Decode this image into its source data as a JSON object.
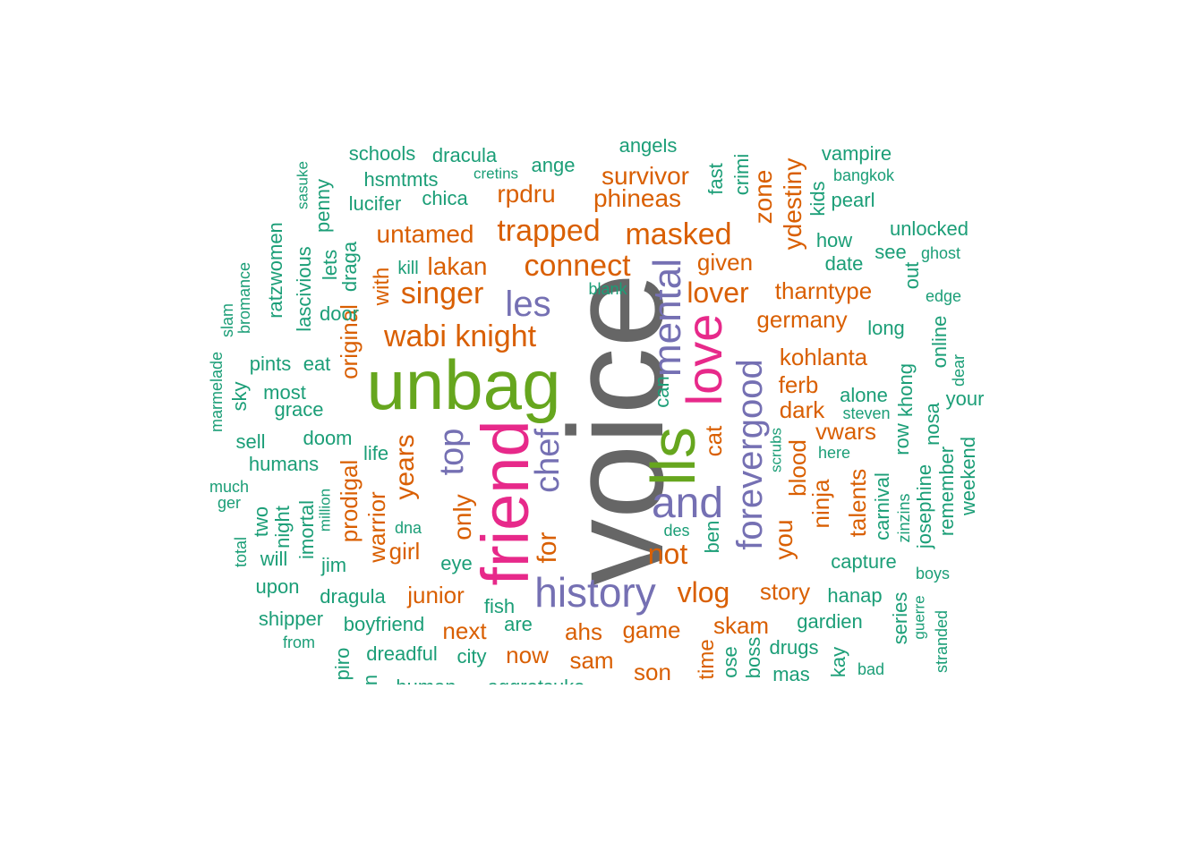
{
  "palette": {
    "teal": "#1b9e77",
    "orange": "#d95f02",
    "purple": "#7570b3",
    "magenta": "#e7298a",
    "green": "#66a61e",
    "gray": "#666666"
  },
  "words": [
    {
      "text": "voice",
      "color": "gray"
    },
    {
      "text": "unbag",
      "color": "green"
    },
    {
      "text": "friend",
      "color": "magenta"
    },
    {
      "text": "history",
      "color": "purple"
    },
    {
      "text": "lls",
      "color": "green"
    },
    {
      "text": "love",
      "color": "magenta"
    },
    {
      "text": "mental",
      "color": "purple"
    },
    {
      "text": "and",
      "color": "purple"
    },
    {
      "text": "forevergood",
      "color": "purple"
    },
    {
      "text": "les",
      "color": "purple"
    },
    {
      "text": "chef",
      "color": "purple"
    },
    {
      "text": "top",
      "color": "purple"
    },
    {
      "text": "connect",
      "color": "orange"
    },
    {
      "text": "trapped",
      "color": "orange"
    },
    {
      "text": "masked",
      "color": "orange"
    },
    {
      "text": "singer",
      "color": "orange"
    },
    {
      "text": "wabi knight",
      "color": "orange"
    },
    {
      "text": "lover",
      "color": "orange"
    },
    {
      "text": "years",
      "color": "orange"
    },
    {
      "text": "only",
      "color": "orange"
    },
    {
      "text": "for",
      "color": "orange"
    },
    {
      "text": "not",
      "color": "orange"
    },
    {
      "text": "vlog",
      "color": "orange"
    },
    {
      "text": "you",
      "color": "orange"
    },
    {
      "text": "untamed",
      "color": "orange"
    },
    {
      "text": "lakan",
      "color": "orange"
    },
    {
      "text": "rpdru",
      "color": "orange"
    },
    {
      "text": "survivor",
      "color": "orange"
    },
    {
      "text": "phineas",
      "color": "orange"
    },
    {
      "text": "zone",
      "color": "orange"
    },
    {
      "text": "ydestiny",
      "color": "orange"
    },
    {
      "text": "given",
      "color": "orange"
    },
    {
      "text": "tharntype",
      "color": "orange"
    },
    {
      "text": "germany",
      "color": "orange"
    },
    {
      "text": "kohlanta",
      "color": "orange"
    },
    {
      "text": "ferb",
      "color": "orange"
    },
    {
      "text": "dark",
      "color": "orange"
    },
    {
      "text": "vwars",
      "color": "orange"
    },
    {
      "text": "blood",
      "color": "orange"
    },
    {
      "text": "ninja",
      "color": "orange"
    },
    {
      "text": "talents",
      "color": "orange"
    },
    {
      "text": "cat",
      "color": "orange"
    },
    {
      "text": "original",
      "color": "orange"
    },
    {
      "text": "prodigal",
      "color": "orange"
    },
    {
      "text": "warrior",
      "color": "orange"
    },
    {
      "text": "with",
      "color": "orange"
    },
    {
      "text": "girl",
      "color": "orange"
    },
    {
      "text": "junior",
      "color": "orange"
    },
    {
      "text": "next",
      "color": "orange"
    },
    {
      "text": "now",
      "color": "orange"
    },
    {
      "text": "ahs",
      "color": "orange"
    },
    {
      "text": "game",
      "color": "orange"
    },
    {
      "text": "sam",
      "color": "orange"
    },
    {
      "text": "son",
      "color": "orange"
    },
    {
      "text": "skam",
      "color": "orange"
    },
    {
      "text": "story",
      "color": "orange"
    },
    {
      "text": "time",
      "color": "orange"
    },
    {
      "text": "schools",
      "color": "teal"
    },
    {
      "text": "dracula",
      "color": "teal"
    },
    {
      "text": "hsmtmts",
      "color": "teal"
    },
    {
      "text": "cretins",
      "color": "teal"
    },
    {
      "text": "ange",
      "color": "teal"
    },
    {
      "text": "angels",
      "color": "teal"
    },
    {
      "text": "lucifer",
      "color": "teal"
    },
    {
      "text": "chica",
      "color": "teal"
    },
    {
      "text": "fast",
      "color": "teal"
    },
    {
      "text": "crimi",
      "color": "teal"
    },
    {
      "text": "vampire",
      "color": "teal"
    },
    {
      "text": "bangkok",
      "color": "teal"
    },
    {
      "text": "kids",
      "color": "teal"
    },
    {
      "text": "pearl",
      "color": "teal"
    },
    {
      "text": "how",
      "color": "teal"
    },
    {
      "text": "date",
      "color": "teal"
    },
    {
      "text": "unlocked",
      "color": "teal"
    },
    {
      "text": "see",
      "color": "teal"
    },
    {
      "text": "ghost",
      "color": "teal"
    },
    {
      "text": "out",
      "color": "teal"
    },
    {
      "text": "edge",
      "color": "teal"
    },
    {
      "text": "long",
      "color": "teal"
    },
    {
      "text": "online",
      "color": "teal"
    },
    {
      "text": "dear",
      "color": "teal"
    },
    {
      "text": "khong",
      "color": "teal"
    },
    {
      "text": "alone",
      "color": "teal"
    },
    {
      "text": "steven",
      "color": "teal"
    },
    {
      "text": "your",
      "color": "teal"
    },
    {
      "text": "nosa",
      "color": "teal"
    },
    {
      "text": "row",
      "color": "teal"
    },
    {
      "text": "here",
      "color": "teal"
    },
    {
      "text": "weekend",
      "color": "teal"
    },
    {
      "text": "remember",
      "color": "teal"
    },
    {
      "text": "josephine",
      "color": "teal"
    },
    {
      "text": "zinzins",
      "color": "teal"
    },
    {
      "text": "carnival",
      "color": "teal"
    },
    {
      "text": "capture",
      "color": "teal"
    },
    {
      "text": "boys",
      "color": "teal"
    },
    {
      "text": "hanap",
      "color": "teal"
    },
    {
      "text": "gardien",
      "color": "teal"
    },
    {
      "text": "series",
      "color": "teal"
    },
    {
      "text": "guerre",
      "color": "teal"
    },
    {
      "text": "stranded",
      "color": "teal"
    },
    {
      "text": "drugs",
      "color": "teal"
    },
    {
      "text": "kay",
      "color": "teal"
    },
    {
      "text": "bad",
      "color": "teal"
    },
    {
      "text": "mas",
      "color": "teal"
    },
    {
      "text": "boss",
      "color": "teal"
    },
    {
      "text": "ose",
      "color": "teal"
    },
    {
      "text": "scrubs",
      "color": "teal"
    },
    {
      "text": "blank",
      "color": "teal"
    },
    {
      "text": "can",
      "color": "teal"
    },
    {
      "text": "des",
      "color": "teal"
    },
    {
      "text": "ben",
      "color": "teal"
    },
    {
      "text": "sasuke",
      "color": "teal"
    },
    {
      "text": "penny",
      "color": "teal"
    },
    {
      "text": "lets",
      "color": "teal"
    },
    {
      "text": "draga",
      "color": "teal"
    },
    {
      "text": "kill",
      "color": "teal"
    },
    {
      "text": "ratzwomen",
      "color": "teal"
    },
    {
      "text": "lascivious",
      "color": "teal"
    },
    {
      "text": "door",
      "color": "teal"
    },
    {
      "text": "bromance",
      "color": "teal"
    },
    {
      "text": "slam",
      "color": "teal"
    },
    {
      "text": "marmelade",
      "color": "teal"
    },
    {
      "text": "pints",
      "color": "teal"
    },
    {
      "text": "eat",
      "color": "teal"
    },
    {
      "text": "sky",
      "color": "teal"
    },
    {
      "text": "most",
      "color": "teal"
    },
    {
      "text": "grace",
      "color": "teal"
    },
    {
      "text": "sell",
      "color": "teal"
    },
    {
      "text": "doom",
      "color": "teal"
    },
    {
      "text": "life",
      "color": "teal"
    },
    {
      "text": "humans",
      "color": "teal"
    },
    {
      "text": "much",
      "color": "teal"
    },
    {
      "text": "ger",
      "color": "teal"
    },
    {
      "text": "two",
      "color": "teal"
    },
    {
      "text": "night",
      "color": "teal"
    },
    {
      "text": "imortal",
      "color": "teal"
    },
    {
      "text": "million",
      "color": "teal"
    },
    {
      "text": "total",
      "color": "teal"
    },
    {
      "text": "will",
      "color": "teal"
    },
    {
      "text": "jim",
      "color": "teal"
    },
    {
      "text": "dna",
      "color": "teal"
    },
    {
      "text": "eye",
      "color": "teal"
    },
    {
      "text": "upon",
      "color": "teal"
    },
    {
      "text": "dragula",
      "color": "teal"
    },
    {
      "text": "fish",
      "color": "teal"
    },
    {
      "text": "shipper",
      "color": "teal"
    },
    {
      "text": "boyfriend",
      "color": "teal"
    },
    {
      "text": "are",
      "color": "teal"
    },
    {
      "text": "from",
      "color": "teal"
    },
    {
      "text": "dreadful",
      "color": "teal"
    },
    {
      "text": "city",
      "color": "teal"
    },
    {
      "text": "piro",
      "color": "teal"
    },
    {
      "text": "human",
      "color": "teal"
    },
    {
      "text": "aggretsuko",
      "color": "teal"
    },
    {
      "text": "n",
      "color": "teal"
    }
  ]
}
